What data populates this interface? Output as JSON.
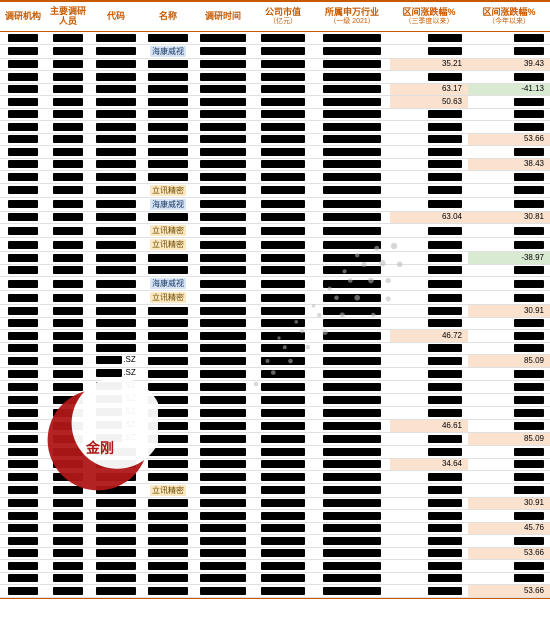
{
  "columns": [
    {
      "key": "org",
      "label": "调研机构",
      "sub": "",
      "w": "c0"
    },
    {
      "key": "person",
      "label": "主要调研人员",
      "sub": "",
      "w": "c1"
    },
    {
      "key": "code",
      "label": "代码",
      "sub": "",
      "w": "c2"
    },
    {
      "key": "name",
      "label": "名称",
      "sub": "",
      "w": "c3"
    },
    {
      "key": "time",
      "label": "调研时间",
      "sub": "",
      "w": "c4"
    },
    {
      "key": "cap",
      "label": "公司市值",
      "sub": "（亿元）",
      "w": "c5"
    },
    {
      "key": "ind",
      "label": "所属申万行业",
      "sub": "（一级 2021）",
      "w": "c6"
    },
    {
      "key": "q3",
      "label": "区间涨跌幅%",
      "sub": "（三季度以来）",
      "w": "c7"
    },
    {
      "key": "ytd",
      "label": "区间涨跌幅%",
      "sub": "（今年以来）",
      "w": "c8"
    }
  ],
  "tags": {
    "hik": {
      "text": "海康威视",
      "cls": "tag-blue"
    },
    "lxn": {
      "text": "立讯精密",
      "cls": "tag-yellow"
    }
  },
  "rows": [
    {
      "name": null,
      "q3": "",
      "ytd": ""
    },
    {
      "name": "hik",
      "q3": "",
      "ytd": ""
    },
    {
      "name": null,
      "q3": "35.21",
      "q3hl": "hl-pos",
      "ytd": "39.43",
      "ytdhl": "hl-pos"
    },
    {
      "name": null,
      "q3": "",
      "ytd": ""
    },
    {
      "name": null,
      "q3": "63.17",
      "q3hl": "hl-pos",
      "ytd": "-41.13",
      "ytdhl": "hl-neg"
    },
    {
      "name": null,
      "q3": "50.63",
      "q3hl": "hl-pos",
      "ytd": ""
    },
    {
      "name": null,
      "q3": "",
      "ytd": ""
    },
    {
      "name": null,
      "q3": "",
      "ytd": ""
    },
    {
      "name": null,
      "q3": "",
      "ytd": "53.66",
      "ytdhl": "hl-pos"
    },
    {
      "name": null,
      "q3": "",
      "ytd": ""
    },
    {
      "name": null,
      "q3": "",
      "ytd": "38.43",
      "ytdhl": "hl-pos"
    },
    {
      "name": null,
      "q3": "",
      "ytd": ""
    },
    {
      "name": "lxn",
      "q3": "",
      "ytd": ""
    },
    {
      "name": "hik",
      "q3": "",
      "ytd": ""
    },
    {
      "name": null,
      "q3": "63.04",
      "q3hl": "hl-pos",
      "ytd": "30.81",
      "ytdhl": "hl-pos"
    },
    {
      "name": "lxn",
      "q3": "",
      "ytd": ""
    },
    {
      "name": "lxn",
      "q3": "",
      "ytd": ""
    },
    {
      "name": null,
      "q3": "",
      "ytd": "-38.97",
      "ytdhl": "hl-neg"
    },
    {
      "name": null,
      "q3": "",
      "ytd": ""
    },
    {
      "name": "hik",
      "q3": "",
      "ytd": ""
    },
    {
      "name": "lxn",
      "q3": "",
      "ytd": ""
    },
    {
      "name": null,
      "q3": "",
      "ytd": "30.91",
      "ytdhl": "hl-pos"
    },
    {
      "name": null,
      "q3": "",
      "ytd": ""
    },
    {
      "name": null,
      "q3": "46.72",
      "q3hl": "hl-pos",
      "ytd": ""
    },
    {
      "name": null,
      "q3": "",
      "ytd": ""
    },
    {
      "name": null,
      "code": ".SZ",
      "q3": "",
      "ytd": "85.09",
      "ytdhl": "hl-pos"
    },
    {
      "name": null,
      "code": ".SZ",
      "q3": "",
      "ytd": ""
    },
    {
      "name": null,
      "code": ".SZ",
      "q3": "",
      "ytd": ""
    },
    {
      "name": null,
      "code": ".SZ",
      "q3": "",
      "ytd": ""
    },
    {
      "name": null,
      "code": ".SZ",
      "q3": "",
      "ytd": ""
    },
    {
      "name": null,
      "code": ".SZ",
      "q3": "46.61",
      "q3hl": "hl-pos",
      "ytd": ""
    },
    {
      "name": null,
      "code": ".SZ",
      "q3": "",
      "ytd": "85.09",
      "ytdhl": "hl-pos"
    },
    {
      "name": null,
      "q3": "",
      "ytd": ""
    },
    {
      "name": null,
      "q3": "34.64",
      "q3hl": "hl-pos",
      "ytd": ""
    },
    {
      "name": null,
      "q3": "",
      "ytd": ""
    },
    {
      "name": "lxn",
      "q3": "",
      "ytd": ""
    },
    {
      "name": null,
      "q3": "",
      "ytd": "30.91",
      "ytdhl": "hl-pos"
    },
    {
      "name": null,
      "q3": "",
      "ytd": ""
    },
    {
      "name": null,
      "q3": "",
      "ytd": "45.76",
      "ytdhl": "hl-pos"
    },
    {
      "name": null,
      "q3": "",
      "ytd": ""
    },
    {
      "name": null,
      "q3": "",
      "ytd": "53.66",
      "ytdhl": "hl-pos"
    },
    {
      "name": null,
      "q3": "",
      "ytd": ""
    },
    {
      "name": null,
      "q3": "",
      "ytd": ""
    },
    {
      "name": null,
      "q3": "",
      "ytd": "53.66",
      "ytdhl": "hl-pos"
    }
  ],
  "redact_widths": {
    "org": 30,
    "person": 30,
    "code": 40,
    "name": 40,
    "time": 46,
    "cap": 44,
    "ind": 58,
    "q3": 34,
    "ytd": 30
  },
  "watermark_label": "金刚"
}
